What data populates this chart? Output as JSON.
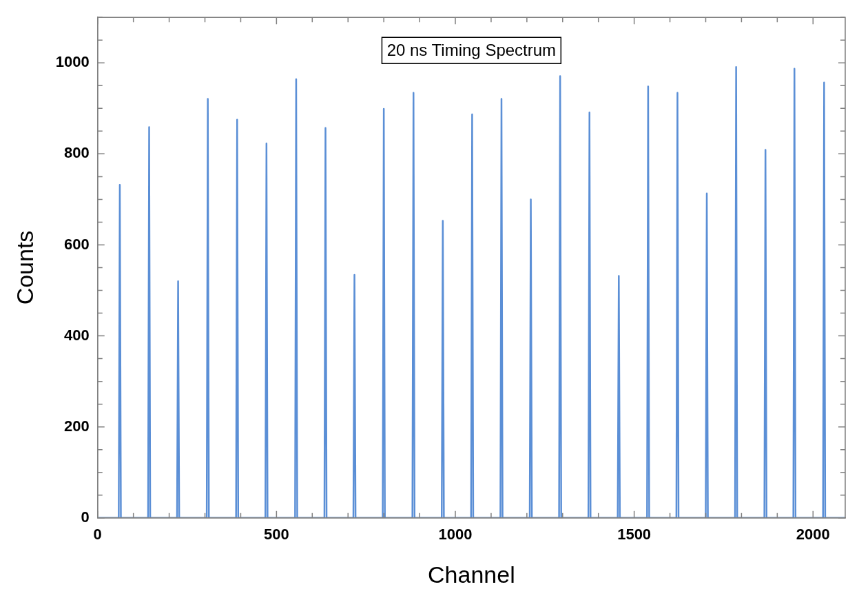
{
  "chart_data": {
    "type": "line",
    "title": "20 ns Timing Spectrum",
    "xlabel": "Channel",
    "ylabel": "Counts",
    "legend": false,
    "xlim": [
      0,
      2090
    ],
    "ylim": [
      0,
      1100
    ],
    "xticks": [
      0,
      {
        "value": 100,
        "label": null
      },
      {
        "value": 200,
        "label": null
      },
      {
        "value": 300,
        "label": null
      },
      {
        "value": 400,
        "label": null
      },
      500,
      {
        "value": 600,
        "label": null
      },
      {
        "value": 700,
        "label": null
      },
      {
        "value": 800,
        "label": null
      },
      {
        "value": 900,
        "label": null
      },
      1000,
      {
        "value": 1100,
        "label": null
      },
      {
        "value": 1200,
        "label": null
      },
      {
        "value": 1300,
        "label": null
      },
      {
        "value": 1400,
        "label": null
      },
      1500,
      {
        "value": 1600,
        "label": null
      },
      {
        "value": 1700,
        "label": null
      },
      {
        "value": 1800,
        "label": null
      },
      {
        "value": 1900,
        "label": null
      },
      2000
    ],
    "yticks": [
      0,
      {
        "value": 50,
        "label": null
      },
      {
        "value": 100,
        "label": null
      },
      {
        "value": 150,
        "label": null
      },
      200,
      {
        "value": 250,
        "label": null
      },
      {
        "value": 300,
        "label": null
      },
      {
        "value": 350,
        "label": null
      },
      400,
      {
        "value": 450,
        "label": null
      },
      {
        "value": 500,
        "label": null
      },
      {
        "value": 550,
        "label": null
      },
      600,
      {
        "value": 650,
        "label": null
      },
      {
        "value": 700,
        "label": null
      },
      {
        "value": 750,
        "label": null
      },
      800,
      {
        "value": 850,
        "label": null
      },
      {
        "value": 900,
        "label": null
      },
      {
        "value": 950,
        "label": null
      },
      1000,
      {
        "value": 1050,
        "label": null
      },
      {
        "value": 1100,
        "label": null
      }
    ],
    "series": [
      {
        "color": "#5b8fd6",
        "x": [
          0,
          59,
          62,
          65,
          141,
          144,
          147,
          222,
          225,
          228,
          305,
          308,
          311,
          387,
          390,
          393,
          469,
          472,
          475,
          552,
          555,
          558,
          634,
          637,
          640,
          715,
          718,
          721,
          797,
          800,
          803,
          880,
          883,
          886,
          962,
          965,
          968,
          1044,
          1047,
          1050,
          1126,
          1129,
          1132,
          1208,
          1211,
          1214,
          1290,
          1293,
          1296,
          1372,
          1375,
          1378,
          1454,
          1457,
          1460,
          1536,
          1539,
          1542,
          1618,
          1621,
          1624,
          1700,
          1703,
          1706,
          1782,
          1785,
          1788,
          1864,
          1867,
          1870,
          1945,
          1948,
          1951,
          2028,
          2031,
          2034,
          2090
        ],
        "values": [
          0,
          0,
          732,
          0,
          0,
          859,
          0,
          0,
          520,
          0,
          0,
          921,
          0,
          0,
          875,
          0,
          0,
          823,
          0,
          0,
          964,
          0,
          0,
          857,
          0,
          0,
          534,
          0,
          0,
          899,
          0,
          0,
          934,
          0,
          0,
          653,
          0,
          0,
          887,
          0,
          0,
          921,
          0,
          0,
          700,
          0,
          0,
          971,
          0,
          0,
          891,
          0,
          0,
          532,
          0,
          0,
          948,
          0,
          0,
          934,
          0,
          0,
          713,
          0,
          0,
          991,
          0,
          0,
          809,
          0,
          0,
          987,
          0,
          0,
          957,
          0,
          0
        ]
      }
    ]
  }
}
